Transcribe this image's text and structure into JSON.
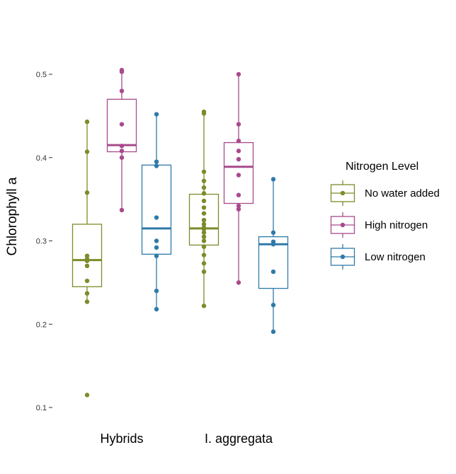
{
  "chart_data": {
    "type": "boxplot",
    "ylabel": "Chlorophyll a",
    "ylim": [
      0.1,
      0.5
    ],
    "yticks": [
      0.1,
      0.2,
      0.3,
      0.4,
      0.5
    ],
    "ytick_labels": [
      "0.1",
      "0.2",
      "0.3",
      "0.4",
      "0.5"
    ],
    "categories": [
      "Hybrids",
      "I. aggregata"
    ],
    "grid": false,
    "legend": {
      "title": "Nitrogen Level",
      "position": "right",
      "entries": [
        "No water added",
        "High nitrogen",
        "Low nitrogen"
      ]
    },
    "series": [
      {
        "name": "No water added",
        "color": "#7d8b2a",
        "groups": [
          {
            "category": "Hybrids",
            "q1": 0.245,
            "median": 0.277,
            "q3": 0.32,
            "whisker_low": 0.227,
            "whisker_high": 0.443,
            "points": [
              0.115,
              0.227,
              0.237,
              0.252,
              0.27,
              0.276,
              0.278,
              0.282,
              0.358,
              0.407,
              0.443
            ]
          },
          {
            "category": "I. aggregata",
            "q1": 0.295,
            "median": 0.315,
            "q3": 0.356,
            "whisker_low": 0.222,
            "whisker_high": 0.455,
            "points": [
              0.222,
              0.263,
              0.273,
              0.283,
              0.293,
              0.3,
              0.305,
              0.31,
              0.314,
              0.316,
              0.32,
              0.325,
              0.333,
              0.34,
              0.348,
              0.357,
              0.364,
              0.372,
              0.383,
              0.453,
              0.455
            ]
          }
        ]
      },
      {
        "name": "High nitrogen",
        "color": "#a84a8c",
        "groups": [
          {
            "category": "Hybrids",
            "q1": 0.407,
            "median": 0.415,
            "q3": 0.47,
            "whisker_low": 0.337,
            "whisker_high": 0.504,
            "points": [
              0.337,
              0.4,
              0.408,
              0.414,
              0.44,
              0.48,
              0.503,
              0.505
            ]
          },
          {
            "category": "I. aggregata",
            "q1": 0.345,
            "median": 0.389,
            "q3": 0.418,
            "whisker_low": 0.25,
            "whisker_high": 0.5,
            "points": [
              0.25,
              0.338,
              0.342,
              0.355,
              0.379,
              0.398,
              0.408,
              0.42,
              0.44,
              0.5
            ]
          }
        ]
      },
      {
        "name": "Low nitrogen",
        "color": "#2f7aa8",
        "groups": [
          {
            "category": "Hybrids",
            "q1": 0.284,
            "median": 0.315,
            "q3": 0.391,
            "whisker_low": 0.218,
            "whisker_high": 0.452,
            "points": [
              0.218,
              0.24,
              0.282,
              0.292,
              0.3,
              0.328,
              0.39,
              0.395,
              0.452
            ]
          },
          {
            "category": "I. aggregata",
            "q1": 0.243,
            "median": 0.296,
            "q3": 0.305,
            "whisker_low": 0.191,
            "whisker_high": 0.374,
            "points": [
              0.191,
              0.223,
              0.263,
              0.296,
              0.299,
              0.31,
              0.374
            ]
          }
        ]
      }
    ]
  }
}
